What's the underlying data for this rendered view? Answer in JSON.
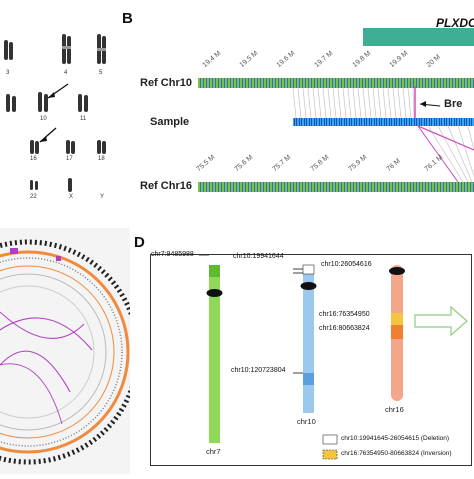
{
  "panels": {
    "b": "B",
    "d": "D"
  },
  "panel_b": {
    "gene_label": "PLXDC",
    "ref_top": "Ref Chr10",
    "sample": "Sample",
    "ref_bottom": "Ref Chr16",
    "breakpoint": "Bre",
    "top_ticks": [
      "19.4 M",
      "19.5 M",
      "19.6 M",
      "19.7 M",
      "19.8 M",
      "19.9 M",
      "20 M"
    ],
    "bottom_ticks": [
      "75.5 M",
      "75.6 M",
      "75.7 M",
      "75.8 M",
      "75.9 M",
      "76 M",
      "76.1 M"
    ]
  },
  "panel_a": {
    "chr_numbers": [
      "3",
      "4",
      "5",
      "10",
      "11",
      "16",
      "17",
      "18",
      "22",
      "X",
      "Y"
    ]
  },
  "panel_d": {
    "chr7_bp": "chr7:9485988",
    "chr10_bp1": "chr10:19941644",
    "chr10_bp2": "chr10:26054616",
    "chr10_bp3": "chr10:120723804",
    "chr16_bp1": "chr16:76354950",
    "chr16_bp2": "chr16:80663824",
    "chr7": "chr7",
    "chr10": "chr10",
    "chr16": "chr16",
    "legend_deletion": "chr10:19941645-26054615 (Deletion)",
    "legend_inversion": "chr16:76354950-80663824 (Inversion)"
  },
  "colors": {
    "teal": "#3fae95",
    "chr7": "#8fd85a",
    "chr10": "#9ac8ef",
    "chr16": "#f4a58a",
    "inversion": "#f5c542",
    "circos_orange": "#f08a3e",
    "circos_purple": "#b040c0"
  }
}
